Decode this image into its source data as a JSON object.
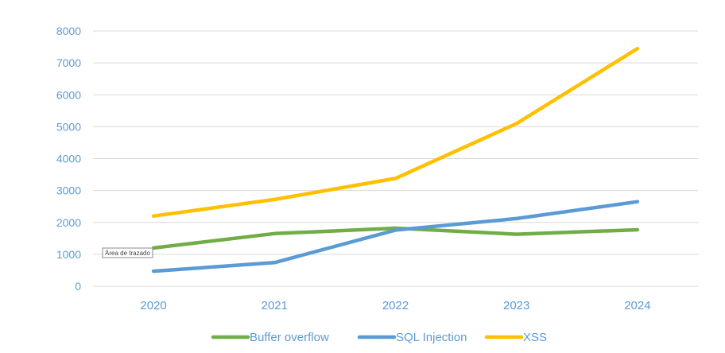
{
  "chart_data": {
    "type": "line",
    "categories": [
      "2020",
      "2021",
      "2022",
      "2023",
      "2024"
    ],
    "series": [
      {
        "name": "Buffer overflow",
        "color": "#70ad47",
        "values": [
          1200,
          1650,
          1820,
          1630,
          1770
        ]
      },
      {
        "name": "SQL Injection",
        "color": "#5b9bd5",
        "values": [
          470,
          740,
          1760,
          2120,
          2650
        ]
      },
      {
        "name": "XSS",
        "color": "#ffc000",
        "values": [
          2200,
          2720,
          3380,
          5100,
          7450
        ]
      }
    ],
    "ylim": [
      0,
      8000
    ],
    "yticks": [
      "0",
      "1000",
      "2000",
      "3000",
      "4000",
      "5000",
      "6000",
      "7000",
      "8000"
    ],
    "grid": true,
    "legend_position": "bottom",
    "tooltip": "Área de trazado"
  }
}
